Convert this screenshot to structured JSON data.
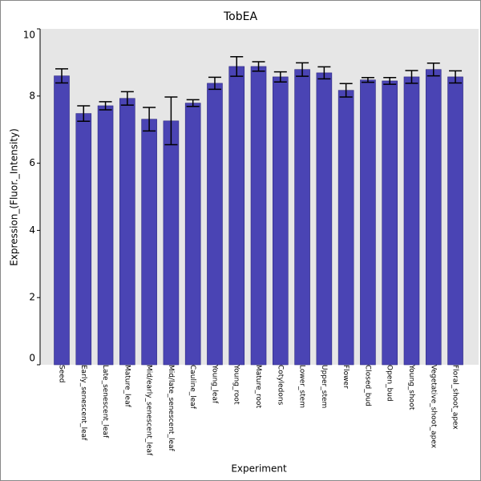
{
  "chart_data": {
    "type": "bar",
    "title": "TobEA",
    "x_label": "Experiment",
    "y_label": "Expression_(Fluor._Intensity)",
    "categories": [
      "Seed",
      "Early_senescent_leaf",
      "Late_senescent_leaf",
      "Mature_leaf",
      "Mid/early_senescent_leaf",
      "Mid/late_senescent_leaf",
      "Cauline_leaf",
      "Young_leaf",
      "Young_root",
      "Mature_root",
      "Cotyledons",
      "Lower_stem",
      "Upper_stem",
      "Flower",
      "Closed_bud",
      "Open_bud",
      "Young_shoot",
      "Vegetative_shoot_apex",
      "Floral_shoot_apex"
    ],
    "values": [
      8.6,
      7.48,
      7.71,
      7.93,
      7.31,
      7.26,
      7.79,
      8.38,
      8.88,
      8.88,
      8.57,
      8.79,
      8.69,
      8.17,
      8.48,
      8.45,
      8.57,
      8.79,
      8.57
    ],
    "errors": [
      0.21,
      0.23,
      0.12,
      0.2,
      0.35,
      0.71,
      0.1,
      0.18,
      0.29,
      0.14,
      0.15,
      0.2,
      0.18,
      0.2,
      0.07,
      0.1,
      0.19,
      0.19,
      0.18
    ],
    "color": "#4a44b4",
    "ylim": [
      0,
      10
    ],
    "yticks": [
      0,
      2,
      4,
      6,
      8,
      10
    ]
  }
}
